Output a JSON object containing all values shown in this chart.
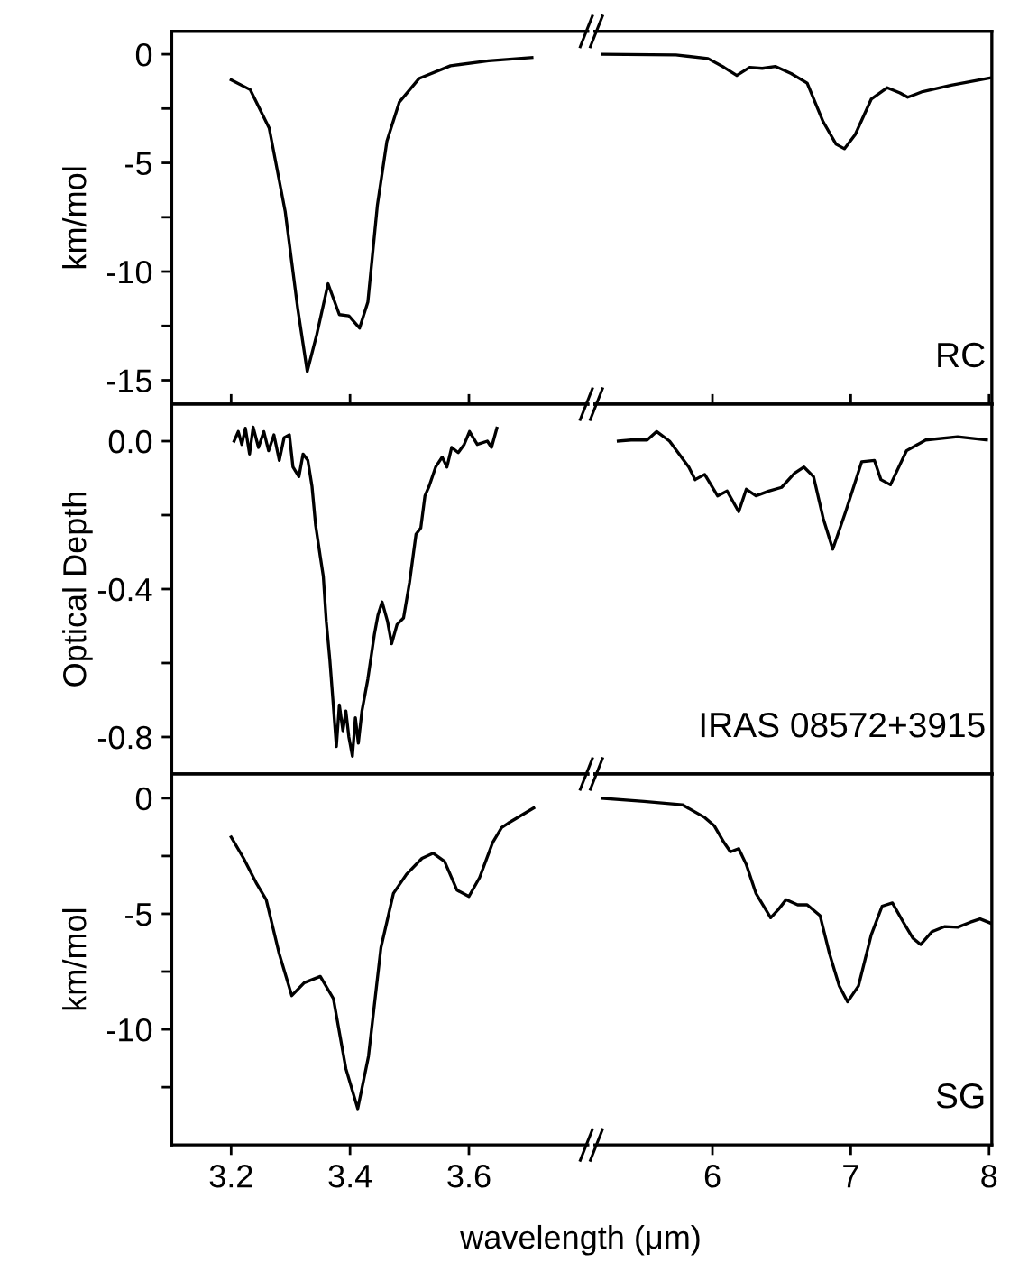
{
  "chart_data": [
    {
      "type": "line",
      "ylabel": "km/mol",
      "xlim": [
        3.1,
        3.8
      ],
      "ylim": [
        -16.1,
        1.05
      ],
      "xticks": [
        3.2,
        3.4,
        3.6
      ],
      "yticks": [
        0,
        {
          "value": -2.5,
          "label": null
        },
        -5,
        {
          "value": -7.5,
          "label": null
        },
        -10,
        {
          "value": -12.5,
          "label": null
        },
        -15
      ],
      "tick_labels": "y",
      "grid": false,
      "legend": false,
      "series": [
        {
          "color": "#000000",
          "x": [
            3.2,
            3.232,
            3.264,
            3.291,
            3.312,
            3.328,
            3.344,
            3.363,
            3.382,
            3.398,
            3.416,
            3.43,
            3.446,
            3.462,
            3.483,
            3.516,
            3.569,
            3.633,
            3.706
          ],
          "values": [
            -1.18,
            -1.63,
            -3.4,
            -7.25,
            -11.7,
            -14.6,
            -12.9,
            -10.56,
            -11.98,
            -12.04,
            -12.6,
            -11.4,
            -6.95,
            -4.0,
            -2.2,
            -1.12,
            -0.53,
            -0.3,
            -0.15
          ]
        }
      ]
    },
    {
      "type": "line",
      "xlim": [
        5.15,
        8.02
      ],
      "ylim": [
        -16.1,
        1.05
      ],
      "xticks": [
        6,
        7,
        8
      ],
      "tick_labels": false,
      "grid": false,
      "legend": false,
      "annotations": [
        "RC"
      ],
      "series": [
        {
          "color": "#000000",
          "x": [
            5.204,
            5.736,
            5.968,
            6.083,
            6.176,
            6.269,
            6.36,
            6.454,
            6.569,
            6.685,
            6.8,
            6.894,
            6.954,
            7.032,
            7.148,
            7.264,
            7.356,
            7.412,
            7.519,
            7.727,
            8.005
          ],
          "values": [
            0.0,
            -0.03,
            -0.2,
            -0.6,
            -0.98,
            -0.6,
            -0.65,
            -0.56,
            -0.89,
            -1.33,
            -3.1,
            -4.14,
            -4.35,
            -3.7,
            -2.07,
            -1.54,
            -1.78,
            -1.98,
            -1.72,
            -1.42,
            -1.09
          ]
        }
      ]
    },
    {
      "type": "line",
      "ylabel": "Optical Depth",
      "xlim": [
        3.1,
        3.8
      ],
      "ylim": [
        -0.9,
        0.1
      ],
      "xticks": [
        3.2,
        3.4,
        3.6
      ],
      "yticks": [
        {
          "value": 0.0,
          "label": "0.0"
        },
        {
          "value": -0.2,
          "label": null
        },
        {
          "value": -0.4,
          "label": "-0.4"
        },
        {
          "value": -0.6,
          "label": null
        },
        {
          "value": -0.8,
          "label": "-0.8"
        }
      ],
      "tick_labels": "y",
      "grid": false,
      "legend": false,
      "series": [
        {
          "color": "#000000",
          "x": [
            3.205,
            3.212,
            3.218,
            3.224,
            3.231,
            3.237,
            3.246,
            3.255,
            3.263,
            3.272,
            3.281,
            3.289,
            3.298,
            3.304,
            3.314,
            3.321,
            3.329,
            3.336,
            3.342,
            3.35,
            3.355,
            3.36,
            3.366,
            3.371,
            3.377,
            3.382,
            3.388,
            3.393,
            3.398,
            3.404,
            3.409,
            3.414,
            3.42,
            3.43,
            3.441,
            3.447,
            3.454,
            3.463,
            3.47,
            3.479,
            3.49,
            3.5,
            3.511,
            3.519,
            3.526,
            3.533,
            3.544,
            3.555,
            3.563,
            3.571,
            3.582,
            3.592,
            3.601,
            3.614,
            3.631,
            3.638,
            3.647
          ],
          "values": [
            0.0,
            0.026,
            -0.009,
            0.035,
            -0.035,
            0.038,
            -0.017,
            0.026,
            -0.026,
            0.017,
            -0.052,
            0.009,
            0.017,
            -0.07,
            -0.096,
            -0.035,
            -0.052,
            -0.122,
            -0.226,
            -0.313,
            -0.365,
            -0.487,
            -0.591,
            -0.696,
            -0.826,
            -0.713,
            -0.783,
            -0.73,
            -0.8,
            -0.852,
            -0.748,
            -0.817,
            -0.73,
            -0.643,
            -0.522,
            -0.47,
            -0.435,
            -0.487,
            -0.548,
            -0.496,
            -0.478,
            -0.383,
            -0.252,
            -0.235,
            -0.148,
            -0.122,
            -0.07,
            -0.043,
            -0.07,
            -0.017,
            -0.031,
            -0.009,
            0.026,
            -0.009,
            0.0,
            -0.017,
            0.035
          ]
        }
      ]
    },
    {
      "type": "line",
      "xlim": [
        5.15,
        8.02
      ],
      "ylim": [
        -0.9,
        0.1
      ],
      "xticks": [
        6,
        7,
        8
      ],
      "tick_labels": false,
      "grid": false,
      "legend": false,
      "annotations": [
        "IRAS 08572+3915"
      ],
      "series": [
        {
          "color": "#000000",
          "x": [
            5.319,
            5.412,
            5.528,
            5.597,
            5.69,
            5.759,
            5.829,
            5.875,
            5.944,
            6.037,
            6.106,
            6.19,
            6.245,
            6.315,
            6.407,
            6.5,
            6.593,
            6.662,
            6.731,
            6.801,
            6.87,
            6.963,
            7.079,
            7.171,
            7.218,
            7.287,
            7.403,
            7.542,
            7.773,
            7.981
          ],
          "values": [
            0.0,
            0.003,
            0.003,
            0.026,
            0.0,
            -0.035,
            -0.07,
            -0.104,
            -0.09,
            -0.148,
            -0.135,
            -0.191,
            -0.13,
            -0.148,
            -0.135,
            -0.125,
            -0.087,
            -0.07,
            -0.096,
            -0.209,
            -0.292,
            -0.191,
            -0.056,
            -0.052,
            -0.104,
            -0.118,
            -0.026,
            0.003,
            0.012,
            0.003
          ]
        }
      ]
    },
    {
      "type": "line",
      "ylabel": "km/mol",
      "xlabel": "wavelength (μm)",
      "xlim": [
        3.1,
        3.8
      ],
      "ylim": [
        -15.0,
        1.05
      ],
      "xticks": [
        3.2,
        3.4,
        3.6
      ],
      "yticks": [
        0,
        {
          "value": -2.5,
          "label": null
        },
        -5,
        {
          "value": -7.5,
          "label": null
        },
        -10,
        {
          "value": -12.5,
          "label": null
        }
      ],
      "grid": false,
      "legend": false,
      "series": [
        {
          "color": "#000000",
          "x": [
            3.2,
            3.221,
            3.243,
            3.259,
            3.281,
            3.302,
            3.323,
            3.35,
            3.372,
            3.393,
            3.413,
            3.431,
            3.452,
            3.473,
            3.495,
            3.521,
            3.54,
            3.559,
            3.58,
            3.6,
            3.618,
            3.64,
            3.655,
            3.666,
            3.709
          ],
          "values": [
            -1.68,
            -2.6,
            -3.7,
            -4.39,
            -6.74,
            -8.54,
            -7.98,
            -7.71,
            -8.67,
            -11.7,
            -13.43,
            -11.17,
            -6.46,
            -4.12,
            -3.29,
            -2.6,
            -2.38,
            -2.73,
            -3.98,
            -4.25,
            -3.43,
            -1.91,
            -1.27,
            -1.08,
            -0.42
          ]
        }
      ]
    },
    {
      "type": "line",
      "xlim": [
        5.15,
        8.02
      ],
      "ylim": [
        -15.0,
        1.05
      ],
      "xticks": [
        6,
        7,
        8
      ],
      "tick_labels": "x",
      "grid": false,
      "legend": false,
      "annotations": [
        "SG"
      ],
      "series": [
        {
          "color": "#000000",
          "x": [
            5.204,
            5.505,
            5.782,
            5.944,
            6.014,
            6.083,
            6.13,
            6.19,
            6.245,
            6.315,
            6.421,
            6.477,
            6.532,
            6.616,
            6.685,
            6.778,
            6.847,
            6.917,
            6.977,
            7.056,
            7.148,
            7.227,
            7.301,
            7.38,
            7.449,
            7.505,
            7.588,
            7.681,
            7.773,
            7.866,
            7.935,
            8.014
          ],
          "values": [
            0.0,
            -0.14,
            -0.28,
            -0.83,
            -1.2,
            -1.91,
            -2.32,
            -2.18,
            -2.87,
            -4.12,
            -5.17,
            -4.81,
            -4.39,
            -4.61,
            -4.61,
            -5.08,
            -6.74,
            -8.12,
            -8.81,
            -8.12,
            -5.91,
            -4.67,
            -4.53,
            -5.36,
            -6.05,
            -6.33,
            -5.77,
            -5.55,
            -5.58,
            -5.36,
            -5.22,
            -5.41
          ]
        }
      ]
    }
  ]
}
